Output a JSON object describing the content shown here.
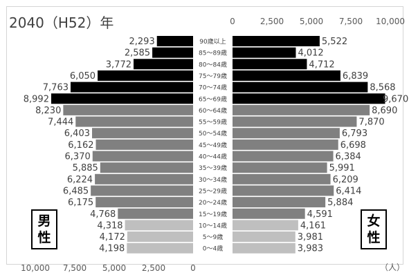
{
  "chart_data": {
    "type": "bar",
    "title": "2040（H52）年",
    "unit": "（人）",
    "left_label": [
      "男",
      "性"
    ],
    "right_label": [
      "女",
      "性"
    ],
    "xlim": [
      0,
      10000
    ],
    "male_ticks": [
      "10,000",
      "7,500",
      "5,000",
      "2,500",
      "0"
    ],
    "female_ticks": [
      "0",
      "2,500",
      "5,000",
      "7,500",
      "10,000"
    ],
    "categories": [
      "90歳以上",
      "85～89歳",
      "80～84歳",
      "75～79歳",
      "70～74歳",
      "65～69歳",
      "60～64歳",
      "55～59歳",
      "50～54歳",
      "45～49歳",
      "40～44歳",
      "35～39歳",
      "30～34歳",
      "25～29歳",
      "20～24歳",
      "15～19歳",
      "10～14歳",
      "5～9歳",
      "0～4歳"
    ],
    "series": [
      {
        "name": "男性",
        "values": [
          2293,
          2585,
          3772,
          6050,
          7763,
          8992,
          8230,
          7444,
          6403,
          6162,
          6370,
          5885,
          6224,
          6485,
          6175,
          4768,
          4318,
          4172,
          4198
        ],
        "labels": [
          "2,293",
          "2,585",
          "3,772",
          "6,050",
          "7,763",
          "8,992",
          "8,230",
          "7,444",
          "6,403",
          "6,162",
          "6,370",
          "5,885",
          "6,224",
          "6,485",
          "6,175",
          "4,768",
          "4,318",
          "4,172",
          "4,198"
        ]
      },
      {
        "name": "女性",
        "values": [
          5522,
          4012,
          4712,
          6839,
          8568,
          9670,
          8690,
          7870,
          6793,
          6698,
          6384,
          5991,
          6209,
          6414,
          5884,
          4591,
          4161,
          3981,
          3983
        ],
        "labels": [
          "5,522",
          "4,012",
          "4,712",
          "6,839",
          "8,568",
          "9,670",
          "8,690",
          "7,870",
          "6,793",
          "6,698",
          "6,384",
          "5,991",
          "6,209",
          "6,414",
          "5,884",
          "4,591",
          "4,161",
          "3,981",
          "3,983"
        ]
      }
    ],
    "colors": {
      "elderly": "#000000",
      "working": "#808080",
      "child": "#bfbfbf"
    }
  }
}
